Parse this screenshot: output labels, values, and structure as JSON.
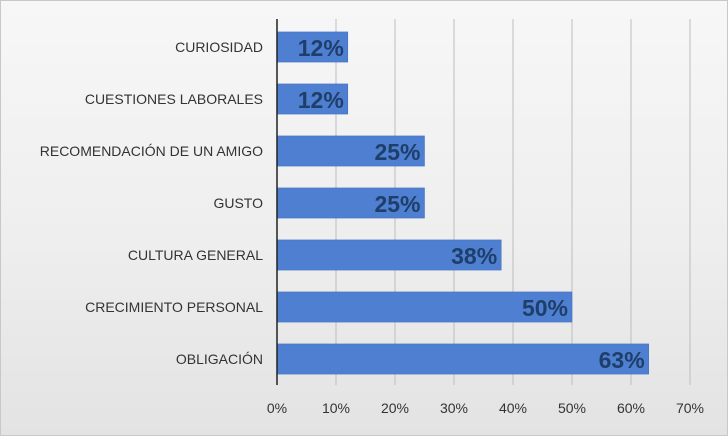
{
  "chart_data": {
    "type": "bar",
    "orientation": "horizontal",
    "title": "",
    "xlabel": "",
    "ylabel": "",
    "categories": [
      "CURIOSIDAD",
      "CUESTIONES LABORALES",
      "RECOMENDACIÓN DE UN AMIGO",
      "GUSTO",
      "CULTURA GENERAL",
      "CRECIMIENTO PERSONAL",
      "OBLIGACIÓN"
    ],
    "values": [
      12,
      12,
      25,
      25,
      38,
      50,
      63
    ],
    "value_labels": [
      "12%",
      "12%",
      "25%",
      "25%",
      "38%",
      "50%",
      "63%"
    ],
    "xlim": [
      0,
      70
    ],
    "x_ticks": [
      0,
      10,
      20,
      30,
      40,
      50,
      60,
      70
    ],
    "x_tick_labels": [
      "0%",
      "10%",
      "20%",
      "30%",
      "40%",
      "50%",
      "60%",
      "70%"
    ],
    "grid": true,
    "legend": "none",
    "colors": {
      "bar": "#4f7fd1",
      "bar_stroke": "#3e6cbd",
      "value_label": "#1f3f6b",
      "grid": "#bdbdbd",
      "axis": "#222222",
      "text": "#333333"
    }
  }
}
